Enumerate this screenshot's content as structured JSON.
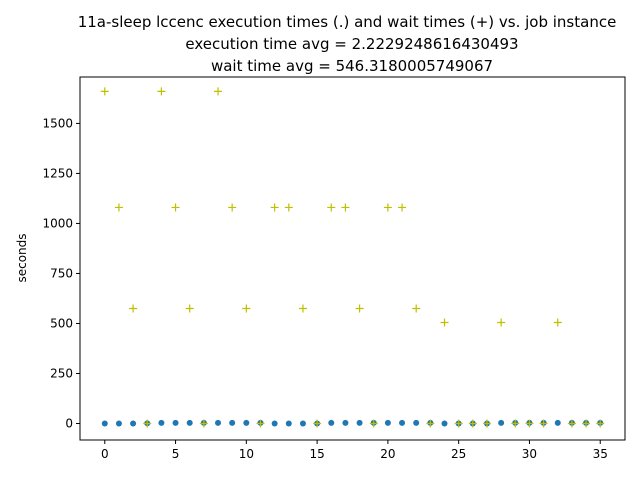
{
  "chart_data": {
    "type": "scatter",
    "title_lines": [
      "11a-sleep lccenc execution times (.) and wait times (+) vs. job instance",
      "execution time avg = 2.2229248616430493",
      "wait time avg = 546.3180005749067"
    ],
    "xlabel": "",
    "ylabel": "seconds",
    "xlim": [
      -1.75,
      36.75
    ],
    "ylim": [
      -82.4,
      1732
    ],
    "xticks": [
      0,
      5,
      10,
      15,
      20,
      25,
      30,
      35
    ],
    "yticks": [
      0,
      250,
      500,
      750,
      1000,
      1250,
      1500
    ],
    "grid": false,
    "series": [
      {
        "marker": "dot",
        "color": "#1f77b4",
        "x": [
          0,
          1,
          2,
          3,
          4,
          5,
          6,
          7,
          8,
          9,
          10,
          11,
          12,
          13,
          14,
          15,
          16,
          17,
          18,
          19,
          20,
          21,
          22,
          23,
          24,
          25,
          26,
          27,
          28,
          29,
          30,
          31,
          32,
          33,
          34,
          35
        ],
        "y": [
          0,
          0,
          0,
          1,
          3,
          3,
          3,
          3,
          3,
          3,
          3,
          3,
          0,
          0,
          0,
          0,
          3,
          3,
          3,
          3,
          3,
          3,
          3,
          3,
          0,
          0,
          0,
          0,
          3,
          3,
          3,
          3,
          3,
          3,
          3,
          3
        ]
      },
      {
        "marker": "plus",
        "color": "#bfbf00",
        "x": [
          0,
          1,
          2,
          3,
          4,
          5,
          6,
          7,
          8,
          9,
          10,
          11,
          12,
          13,
          14,
          15,
          16,
          17,
          18,
          19,
          20,
          21,
          22,
          23,
          24,
          25,
          26,
          27,
          28,
          29,
          30,
          31,
          32,
          33,
          34,
          35
        ],
        "y": [
          1660,
          1080,
          575,
          0,
          1660,
          1080,
          575,
          0,
          1660,
          1080,
          575,
          0,
          1080,
          1080,
          575,
          0,
          1080,
          1080,
          575,
          0,
          1080,
          1080,
          575,
          0,
          505,
          0,
          0,
          0,
          505,
          0,
          0,
          0,
          505,
          0,
          0,
          0
        ]
      }
    ]
  }
}
